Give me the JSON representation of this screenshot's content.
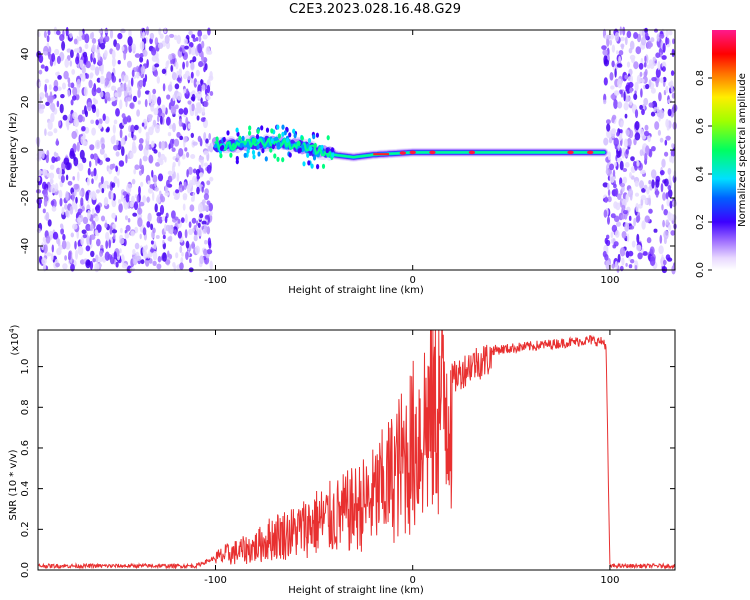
{
  "title": "C2E3.2023.028.16.48.G29",
  "chart_data": [
    {
      "type": "heatmap",
      "xlabel": "Height of straight line (km)",
      "ylabel": "Frequency (Hz)",
      "xlim": [
        -190,
        133
      ],
      "ylim": [
        -50,
        50
      ],
      "x_ticks": [
        -100,
        0,
        100
      ],
      "x_tick_labels": [
        "-100",
        "0",
        "100"
      ],
      "y_ticks": [
        -40,
        -20,
        0,
        20,
        40
      ],
      "y_tick_labels": [
        "-40",
        "-20",
        "0",
        "20",
        "40"
      ],
      "grid": false,
      "colorbar": {
        "label": "Normalized spectral amplitude",
        "range": [
          0,
          1
        ],
        "ticks": [
          0,
          0.2,
          0.4,
          0.6,
          0.8
        ],
        "tick_labels": [
          "0.0",
          "0.2",
          "0.4",
          "0.6",
          "0.8"
        ],
        "colormap": "rainbow (white-violet-blue-cyan-green-yellow-red-pink)"
      },
      "noise_regions_x": [
        [
          -190,
          -102
        ],
        [
          97,
          133
        ]
      ],
      "signal_track": {
        "x": [
          -100,
          -90,
          -80,
          -70,
          -60,
          -50,
          -45,
          -40,
          -30,
          -20,
          0,
          20,
          50,
          80,
          97
        ],
        "y": [
          2,
          2,
          3,
          3,
          2,
          0,
          -1,
          -2,
          -3,
          -2,
          -1,
          -1,
          -1,
          -1,
          -1
        ],
        "peak_x": [
          -5,
          0,
          10,
          30,
          80,
          90
        ]
      }
    },
    {
      "type": "line",
      "xlabel": "Height of straight line (km)",
      "ylabel": "SNR (10 * v/v)",
      "y_scale_note": "(x10",
      "y_scale_exponent": "4",
      "y_scale_close": ")",
      "xlim": [
        -190,
        133
      ],
      "ylim": [
        0,
        1.18
      ],
      "x_ticks": [
        -100,
        0,
        100
      ],
      "x_tick_labels": [
        "-100",
        "0",
        "100"
      ],
      "y_ticks": [
        0,
        0.2,
        0.4,
        0.6,
        0.8,
        1.0
      ],
      "y_tick_labels": [
        "0.0",
        "0.2",
        "0.4",
        "0.6",
        "0.8",
        "1.0"
      ],
      "grid": false,
      "color": "#e83030",
      "series": [
        {
          "x": [
            -190,
            -110,
            -95,
            -80,
            -70,
            -60,
            -50,
            -40,
            -30,
            -20,
            -10,
            0,
            10,
            20,
            30,
            40,
            50,
            60,
            70,
            80,
            90,
            97,
            98,
            100,
            110,
            133
          ],
          "y": [
            0.02,
            0.02,
            0.08,
            0.12,
            0.18,
            0.2,
            0.25,
            0.28,
            0.32,
            0.38,
            0.5,
            0.65,
            0.85,
            0.97,
            1.05,
            1.08,
            1.09,
            1.1,
            1.11,
            1.12,
            1.13,
            1.12,
            1.1,
            0.02,
            0.02,
            0.02
          ]
        }
      ]
    }
  ]
}
